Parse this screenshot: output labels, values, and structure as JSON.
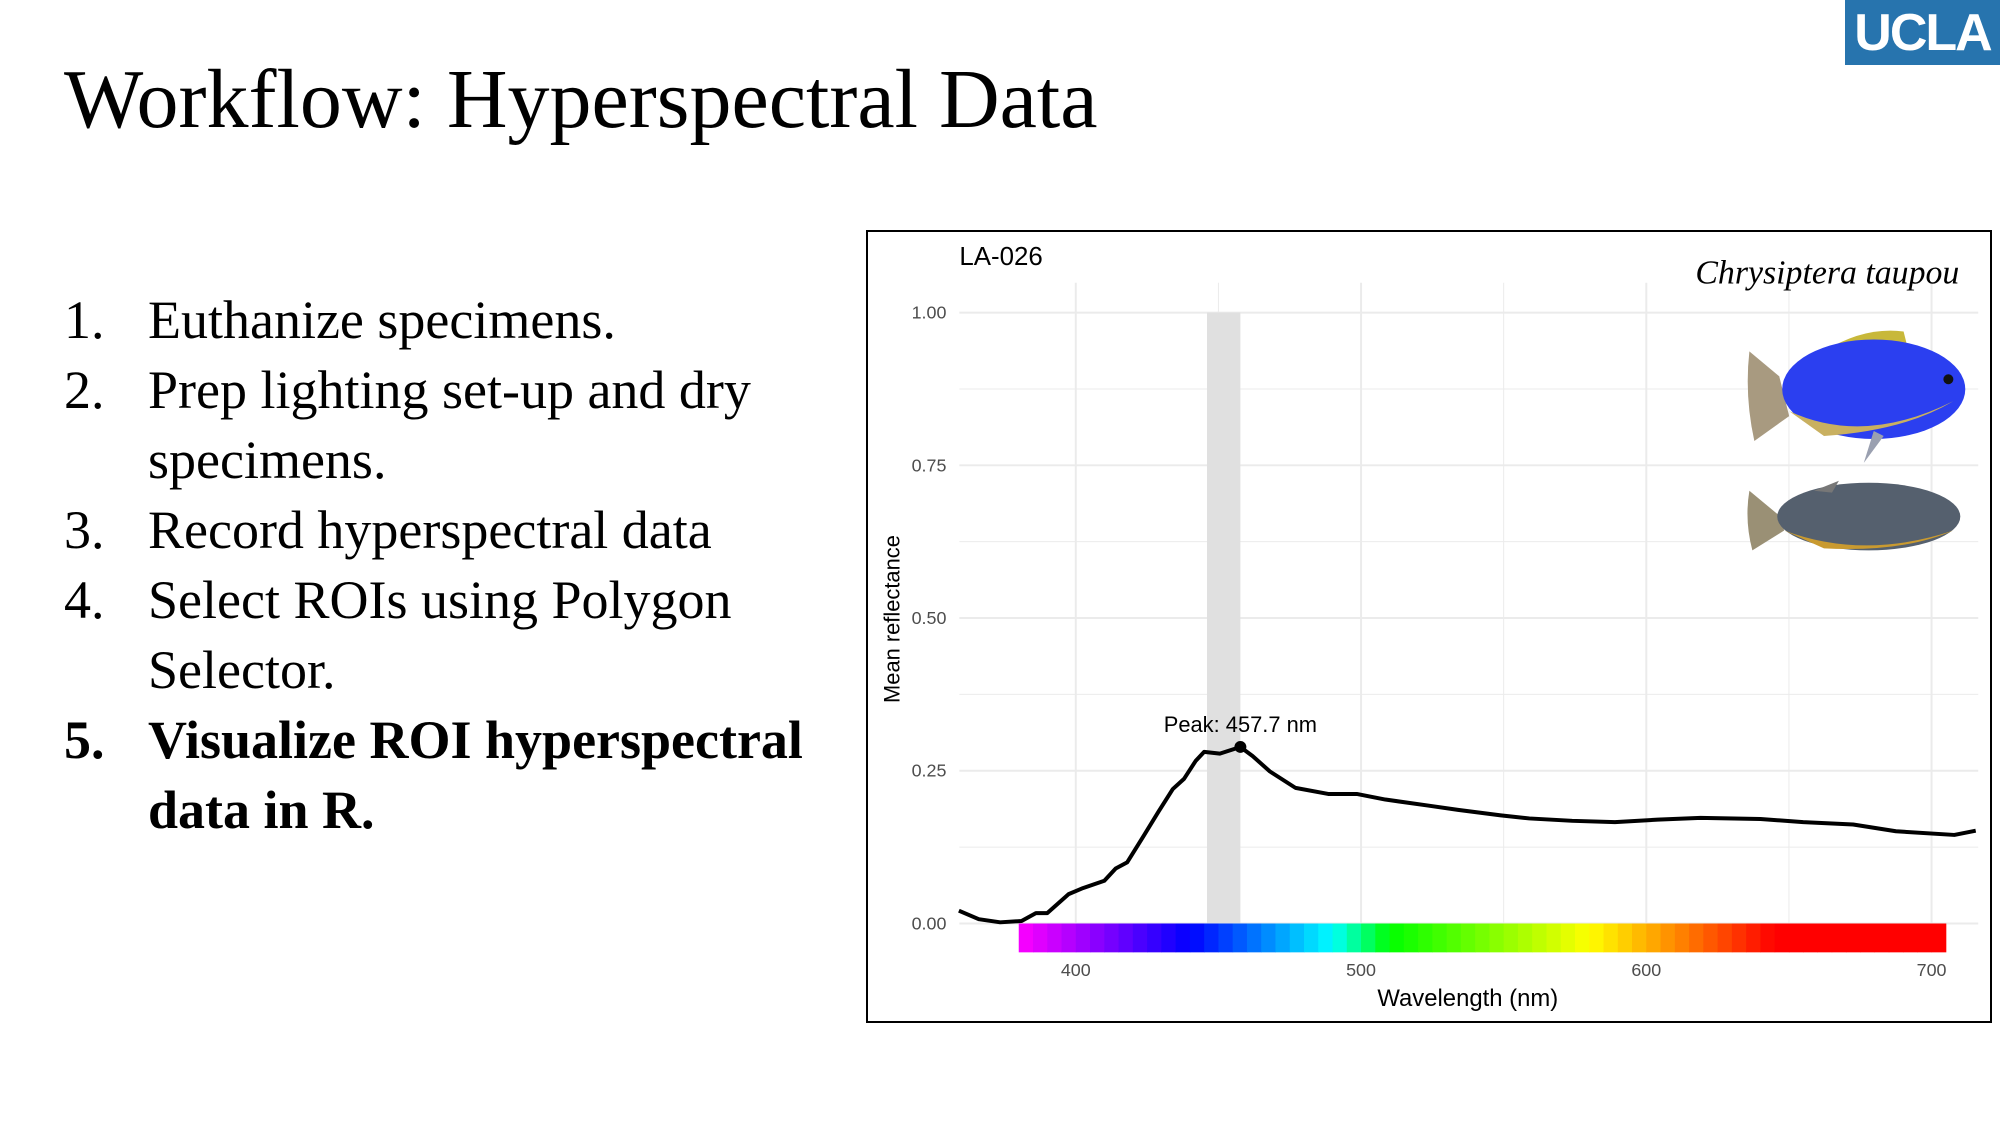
{
  "slide": {
    "title": "Workflow: Hyperspectral Data",
    "logo_text": "UCLA",
    "logo_color": "#2774AE",
    "steps": [
      {
        "num": "1.",
        "text": "Euthanize specimens.",
        "bold": false
      },
      {
        "num": "2.",
        "text": "Prep lighting set-up and dry specimens.",
        "bold": false
      },
      {
        "num": "3.",
        "text": "Record hyperspectral data",
        "bold": false
      },
      {
        "num": "4.",
        "text": "Select ROIs using Polygon Selector.",
        "bold": false
      },
      {
        "num": "5.",
        "text": "Visualize ROI hyperspectral data in R.",
        "bold": true
      }
    ]
  },
  "chart_data": {
    "type": "line",
    "title": "LA-026",
    "species_label": "Chrysiptera taupou",
    "xlabel": "Wavelength (nm)",
    "ylabel": "Mean reflectance",
    "xlim": [
      359,
      716
    ],
    "ylim": [
      0,
      1
    ],
    "x_ticks": [
      "400",
      "500",
      "600",
      "700"
    ],
    "y_ticks": [
      "0.00",
      "0.25",
      "0.50",
      "0.75",
      "1.00"
    ],
    "grid": true,
    "peak_annotation": "Peak: 457.7 nm",
    "peak": {
      "x": 457.7,
      "y": 0.289
    },
    "highlight_band": [
      446,
      457.7
    ],
    "spectrum_bar_range": [
      380,
      705
    ],
    "line_color": "#000000",
    "series": [
      {
        "x": [
          359,
          366,
          373.5,
          381,
          386,
          390,
          397.5,
          402.5,
          410,
          414,
          418,
          424,
          429,
          434,
          438,
          442,
          445,
          450.5,
          457.7,
          462,
          468,
          477,
          488.5,
          498.5,
          508.5,
          523.5,
          534,
          549,
          559,
          574,
          589,
          604,
          619,
          640,
          655,
          672.5,
          687.5,
          708,
          715.5
        ],
        "y": [
          0.021,
          0.007,
          0.002,
          0.004,
          0.017,
          0.017,
          0.048,
          0.058,
          0.07,
          0.09,
          0.1,
          0.145,
          0.183,
          0.22,
          0.237,
          0.266,
          0.281,
          0.278,
          0.289,
          0.274,
          0.249,
          0.222,
          0.212,
          0.212,
          0.203,
          0.193,
          0.186,
          0.177,
          0.172,
          0.168,
          0.166,
          0.17,
          0.173,
          0.171,
          0.166,
          0.162,
          0.151,
          0.145,
          0.152
        ]
      }
    ]
  }
}
